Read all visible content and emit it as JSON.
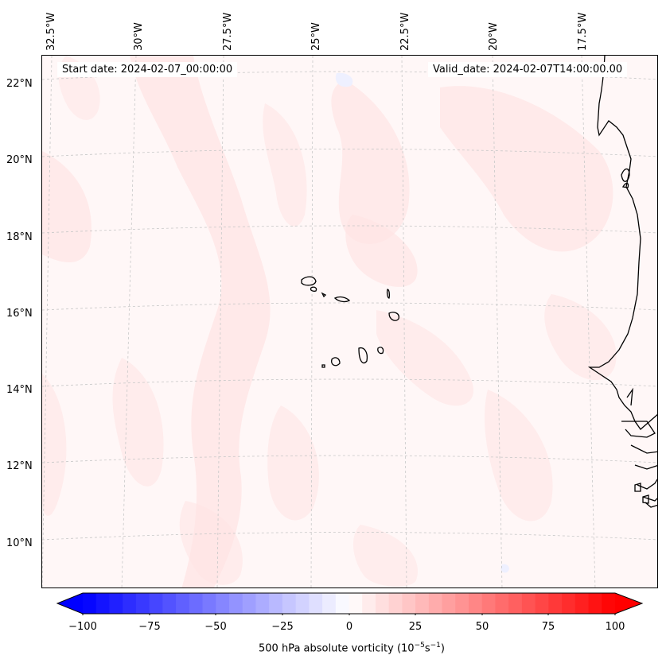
{
  "map": {
    "start_date": "Start date: 2024-02-07_00:00:00",
    "valid_date": "Valid_date: 2024-02-07T14:00:00.00",
    "longitude_labels": [
      "32.5°W",
      "30°W",
      "27.5°W",
      "25°W",
      "22.5°W",
      "20°W",
      "17.5°W"
    ],
    "latitude_labels": [
      "22°N",
      "20°N",
      "18°N",
      "16°N",
      "14°N",
      "12°N",
      "10°N"
    ],
    "field": "500 hPa absolute vorticity",
    "region": "Cape Verde Islands and West African coast"
  },
  "colorbar": {
    "tick_labels": [
      "−100",
      "−75",
      "−50",
      "−25",
      "0",
      "25",
      "50",
      "75",
      "100"
    ],
    "title": "500 hPa absolute vorticity (10",
    "title_exp1": "−5",
    "title_mid": "s",
    "title_exp2": "−1",
    "title_end": ")",
    "min": -100,
    "max": 100,
    "colors": {
      "negative": "#0000ff",
      "zero": "#ffffff",
      "positive": "#ff0000"
    }
  }
}
